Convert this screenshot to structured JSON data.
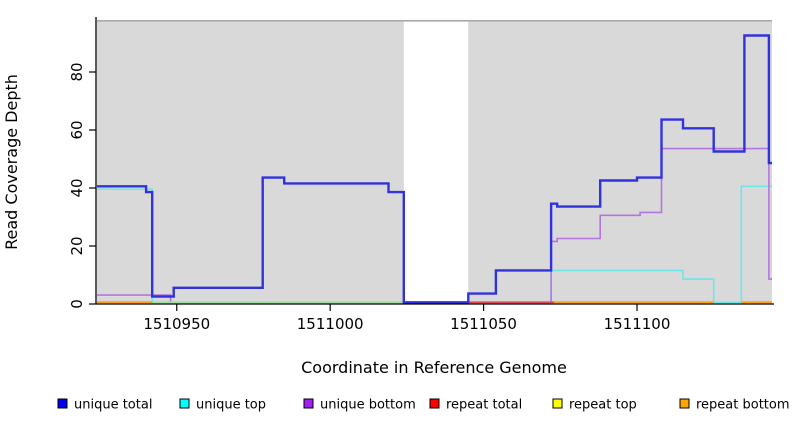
{
  "figure": {
    "background": "#ffffff"
  },
  "chart_data": {
    "type": "line",
    "line_style": "step",
    "title": "",
    "xlabel": "Coordinate in Reference Genome",
    "ylabel": "Read Coverage Depth",
    "grid": "off",
    "legend_position": "bottom",
    "x_axis": {
      "range": [
        1510924,
        1511144
      ],
      "ticks": [
        {
          "coord": 1510950,
          "label": "1510950"
        },
        {
          "coord": 1511000,
          "label": "1511000"
        },
        {
          "coord": 1511050,
          "label": "1511050"
        },
        {
          "coord": 1511100,
          "label": "1511100"
        }
      ]
    },
    "y_axis": {
      "range": [
        0,
        97
      ],
      "ticks": [
        {
          "value": 0,
          "label": "0"
        },
        {
          "value": 20,
          "label": "20"
        },
        {
          "value": 40,
          "label": "40"
        },
        {
          "value": 60,
          "label": "60"
        },
        {
          "value": 80,
          "label": "80"
        }
      ]
    },
    "shading": {
      "fill": "#d9d9d9",
      "top_border": "#ababab",
      "regions": [
        [
          1510924,
          1511024
        ],
        [
          1511045,
          1511144
        ]
      ]
    },
    "series": [
      {
        "name": "unique total",
        "color": "#3232dd",
        "width": 2.4,
        "steps": [
          [
            1510924,
            40
          ],
          [
            1510940,
            38
          ],
          [
            1510942,
            2
          ],
          [
            1510949,
            5
          ],
          [
            1510978,
            43
          ],
          [
            1510985,
            41
          ],
          [
            1511019,
            38
          ],
          [
            1511024,
            0
          ],
          [
            1511045,
            3
          ],
          [
            1511054,
            11
          ],
          [
            1511072,
            34
          ],
          [
            1511074,
            33
          ],
          [
            1511088,
            42
          ],
          [
            1511100,
            43
          ],
          [
            1511108,
            63
          ],
          [
            1511115,
            60
          ],
          [
            1511125,
            52
          ],
          [
            1511135,
            92
          ],
          [
            1511143,
            48
          ],
          [
            1511144,
            48
          ]
        ]
      },
      {
        "name": "unique top",
        "color": "#6fe6ea",
        "width": 1.6,
        "steps": [
          [
            1510924,
            39
          ],
          [
            1510942,
            0
          ],
          [
            1511072,
            11
          ],
          [
            1511115,
            8
          ],
          [
            1511125,
            0
          ],
          [
            1511134,
            40
          ],
          [
            1511144,
            40
          ]
        ]
      },
      {
        "name": "unique bottom",
        "color": "#b575e0",
        "width": 1.6,
        "steps": [
          [
            1510924,
            2.5
          ],
          [
            1510948,
            0
          ],
          [
            1511072,
            21
          ],
          [
            1511074,
            22
          ],
          [
            1511088,
            30
          ],
          [
            1511101,
            31
          ],
          [
            1511108,
            53
          ],
          [
            1511143,
            8
          ],
          [
            1511144,
            8
          ]
        ]
      },
      {
        "name": "repeat total",
        "color": "#e04a58",
        "width": 1.8,
        "segments": [
          {
            "from": 1511045,
            "to": 1511073,
            "value": 0
          }
        ]
      },
      {
        "name": "repeat top",
        "color": "#f5f549",
        "width": 1.6,
        "segments": []
      },
      {
        "name": "repeat bottom",
        "color": "#ff9d1e",
        "width": 2.0,
        "segments": [
          {
            "from": 1510924,
            "to": 1510942,
            "value": 0
          },
          {
            "from": 1511073,
            "to": 1511125,
            "value": 0
          },
          {
            "from": 1511134,
            "to": 1511144,
            "value": 0
          }
        ]
      }
    ],
    "zero_overlays": [
      {
        "color": "#9fe0a0",
        "from": 1510942,
        "to": 1511024,
        "value": 0
      }
    ],
    "legend": {
      "items": [
        {
          "label": "unique total",
          "color": "#0000ee"
        },
        {
          "label": "unique top",
          "color": "#00ffff"
        },
        {
          "label": "unique bottom",
          "color": "#a020f0"
        },
        {
          "label": "repeat total",
          "color": "#ff0000"
        },
        {
          "label": "repeat top",
          "color": "#ffff00"
        },
        {
          "label": "repeat bottom",
          "color": "#ffa500"
        }
      ]
    }
  }
}
